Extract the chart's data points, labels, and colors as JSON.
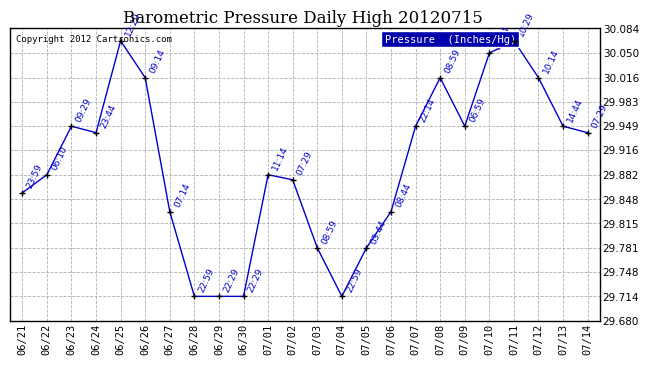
{
  "title": "Barometric Pressure Daily High 20120715",
  "copyright": "Copyright 2012 Cartronics.com",
  "legend_label": "Pressure  (Inches/Hg)",
  "dates": [
    "06/21",
    "06/22",
    "06/23",
    "06/24",
    "06/25",
    "06/26",
    "06/27",
    "06/28",
    "06/29",
    "06/30",
    "07/01",
    "07/02",
    "07/03",
    "07/04",
    "07/05",
    "07/06",
    "07/07",
    "07/08",
    "07/09",
    "07/10",
    "07/11",
    "07/12",
    "07/13",
    "07/14"
  ],
  "values": [
    29.857,
    29.882,
    29.949,
    29.94,
    30.067,
    30.016,
    29.831,
    29.714,
    29.714,
    29.714,
    29.882,
    29.875,
    29.781,
    29.714,
    29.781,
    29.831,
    29.949,
    30.016,
    29.949,
    30.05,
    30.067,
    30.016,
    29.949,
    29.94
  ],
  "times": [
    "23:59",
    "06:10",
    "09:29",
    "23:44",
    "12:29",
    "09:14",
    "07:14",
    "22:59",
    "22:29",
    "22:29",
    "11:14",
    "07:29",
    "08:59",
    "22:59",
    "03:44",
    "08:44",
    "22:14",
    "08:59",
    "06:59",
    "14:44",
    "10:29",
    "10:14",
    "14:44",
    "07:29"
  ],
  "ylim": [
    29.68,
    30.084
  ],
  "yticks": [
    29.68,
    29.714,
    29.748,
    29.781,
    29.815,
    29.848,
    29.882,
    29.916,
    29.949,
    29.983,
    30.016,
    30.05,
    30.084
  ],
  "line_color": "#0000cc",
  "marker_color": "#000000",
  "bg_color": "#ffffff",
  "grid_color": "#b0b0b0",
  "title_fontsize": 12,
  "label_fontsize": 6.5,
  "tick_fontsize": 7.5,
  "copyright_fontsize": 6.5,
  "legend_bg": "#0000aa",
  "legend_fg": "#ffffff",
  "border_color": "#000000"
}
